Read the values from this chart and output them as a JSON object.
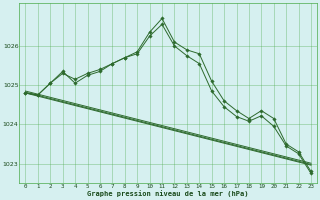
{
  "x": [
    0,
    1,
    2,
    3,
    4,
    5,
    6,
    7,
    8,
    9,
    10,
    11,
    12,
    13,
    14,
    15,
    16,
    17,
    18,
    19,
    20,
    21,
    22,
    23
  ],
  "line_wiggly1": [
    1024.8,
    1024.75,
    1025.05,
    1025.35,
    1025.05,
    1025.25,
    1025.35,
    1025.55,
    1025.7,
    1025.85,
    1026.35,
    1026.7,
    1026.1,
    1025.9,
    1025.8,
    1025.1,
    1024.6,
    1024.35,
    1024.15,
    1024.35,
    1024.15,
    1023.5,
    1023.3,
    1022.8
  ],
  "line_wiggly2": [
    1024.8,
    1024.75,
    1025.05,
    1025.3,
    1025.15,
    1025.3,
    1025.4,
    1025.55,
    1025.7,
    1025.8,
    1026.25,
    1026.55,
    1026.0,
    1025.75,
    1025.55,
    1024.85,
    1024.45,
    1024.2,
    1024.08,
    1024.22,
    1023.95,
    1023.45,
    1023.25,
    1022.75
  ],
  "trend1": [
    1024.8,
    1024.72,
    1024.64,
    1024.56,
    1024.48,
    1024.4,
    1024.32,
    1024.24,
    1024.16,
    1024.08,
    1024.0,
    1023.92,
    1023.84,
    1023.76,
    1023.68,
    1023.6,
    1023.52,
    1023.44,
    1023.36,
    1023.28,
    1023.2,
    1023.12,
    1023.04,
    1022.96
  ],
  "trend2": [
    1024.82,
    1024.74,
    1024.66,
    1024.58,
    1024.5,
    1024.42,
    1024.34,
    1024.26,
    1024.18,
    1024.1,
    1024.02,
    1023.94,
    1023.86,
    1023.78,
    1023.7,
    1023.62,
    1023.54,
    1023.46,
    1023.38,
    1023.3,
    1023.22,
    1023.14,
    1023.06,
    1022.98
  ],
  "trend3": [
    1024.85,
    1024.77,
    1024.69,
    1024.61,
    1024.53,
    1024.45,
    1024.37,
    1024.29,
    1024.21,
    1024.13,
    1024.05,
    1023.97,
    1023.89,
    1023.81,
    1023.73,
    1023.65,
    1023.57,
    1023.49,
    1023.41,
    1023.33,
    1023.25,
    1023.17,
    1023.09,
    1023.01
  ],
  "line_color": "#2d6a2d",
  "bg_color": "#d6f0f0",
  "grid_color": "#4aaa4a",
  "xlabel": "Graphe pression niveau de la mer (hPa)",
  "ylim": [
    1022.5,
    1027.1
  ],
  "yticks": [
    1023,
    1024,
    1025,
    1026
  ],
  "xticks": [
    0,
    1,
    2,
    3,
    4,
    5,
    6,
    7,
    8,
    9,
    10,
    11,
    12,
    13,
    14,
    15,
    16,
    17,
    18,
    19,
    20,
    21,
    22,
    23
  ]
}
